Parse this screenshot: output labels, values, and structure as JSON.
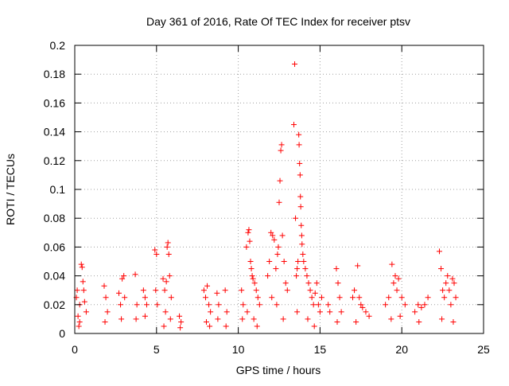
{
  "chart_data": {
    "type": "scatter",
    "title": "Day 361 of 2016, Rate Of TEC Index for receiver ptsv",
    "xlabel": "GPS time / hours",
    "ylabel": "ROTI / TECUs",
    "xlim": [
      0,
      25
    ],
    "ylim": [
      0,
      0.2
    ],
    "xticks": [
      0,
      5,
      10,
      15,
      20,
      25
    ],
    "xtick_labels": [
      "0",
      "5",
      "10",
      "15",
      "20",
      "25"
    ],
    "yticks": [
      0,
      0.02,
      0.04,
      0.06,
      0.08,
      0.1,
      0.12,
      0.14,
      0.16,
      0.18,
      0.2
    ],
    "ytick_labels": [
      "0",
      "0.02",
      "0.04",
      "0.06",
      "0.08",
      "0.1",
      "0.12",
      "0.14",
      "0.16",
      "0.18",
      "0.2"
    ],
    "grid": true,
    "marker": "+",
    "color": "#ff0000",
    "series": [
      {
        "name": "ROTI",
        "points": [
          [
            0.1,
            0.025
          ],
          [
            0.2,
            0.012
          ],
          [
            0.3,
            0.02
          ],
          [
            0.4,
            0.048
          ],
          [
            0.45,
            0.046
          ],
          [
            0.5,
            0.036
          ],
          [
            0.55,
            0.03
          ],
          [
            0.6,
            0.022
          ],
          [
            0.7,
            0.015
          ],
          [
            0.3,
            0.008
          ],
          [
            0.15,
            0.03
          ],
          [
            0.25,
            0.005
          ],
          [
            1.8,
            0.033
          ],
          [
            1.9,
            0.025
          ],
          [
            2.0,
            0.015
          ],
          [
            1.85,
            0.008
          ],
          [
            2.7,
            0.028
          ],
          [
            2.8,
            0.02
          ],
          [
            2.9,
            0.038
          ],
          [
            3.0,
            0.04
          ],
          [
            2.85,
            0.01
          ],
          [
            3.05,
            0.025
          ],
          [
            3.7,
            0.041
          ],
          [
            3.8,
            0.02
          ],
          [
            3.75,
            0.01
          ],
          [
            4.2,
            0.03
          ],
          [
            4.3,
            0.025
          ],
          [
            4.4,
            0.02
          ],
          [
            4.3,
            0.012
          ],
          [
            4.9,
            0.058
          ],
          [
            5.0,
            0.055
          ],
          [
            4.95,
            0.03
          ],
          [
            5.05,
            0.02
          ],
          [
            5.4,
            0.038
          ],
          [
            5.5,
            0.03
          ],
          [
            5.6,
            0.036
          ],
          [
            5.65,
            0.06
          ],
          [
            5.7,
            0.063
          ],
          [
            5.75,
            0.055
          ],
          [
            5.8,
            0.04
          ],
          [
            5.9,
            0.025
          ],
          [
            5.55,
            0.015
          ],
          [
            5.85,
            0.01
          ],
          [
            5.45,
            0.005
          ],
          [
            6.4,
            0.012
          ],
          [
            6.5,
            0.008
          ],
          [
            6.45,
            0.004
          ],
          [
            7.9,
            0.03
          ],
          [
            8.0,
            0.025
          ],
          [
            8.1,
            0.033
          ],
          [
            8.2,
            0.02
          ],
          [
            8.3,
            0.015
          ],
          [
            8.05,
            0.008
          ],
          [
            8.25,
            0.005
          ],
          [
            8.7,
            0.028
          ],
          [
            8.8,
            0.02
          ],
          [
            8.75,
            0.01
          ],
          [
            9.2,
            0.03
          ],
          [
            9.3,
            0.015
          ],
          [
            9.25,
            0.005
          ],
          [
            10.2,
            0.03
          ],
          [
            10.3,
            0.02
          ],
          [
            10.25,
            0.01
          ],
          [
            10.5,
            0.06
          ],
          [
            10.6,
            0.07
          ],
          [
            10.65,
            0.072
          ],
          [
            10.7,
            0.064
          ],
          [
            10.75,
            0.05
          ],
          [
            10.8,
            0.045
          ],
          [
            10.85,
            0.04
          ],
          [
            10.9,
            0.038
          ],
          [
            11.0,
            0.035
          ],
          [
            11.1,
            0.03
          ],
          [
            11.2,
            0.025
          ],
          [
            11.3,
            0.02
          ],
          [
            10.55,
            0.015
          ],
          [
            10.95,
            0.01
          ],
          [
            11.15,
            0.005
          ],
          [
            11.8,
            0.04
          ],
          [
            11.9,
            0.05
          ],
          [
            12.0,
            0.07
          ],
          [
            12.1,
            0.068
          ],
          [
            12.2,
            0.065
          ],
          [
            12.3,
            0.045
          ],
          [
            12.4,
            0.055
          ],
          [
            12.45,
            0.06
          ],
          [
            12.5,
            0.091
          ],
          [
            12.55,
            0.106
          ],
          [
            12.6,
            0.127
          ],
          [
            12.65,
            0.131
          ],
          [
            12.7,
            0.068
          ],
          [
            12.8,
            0.05
          ],
          [
            12.9,
            0.035
          ],
          [
            13.0,
            0.03
          ],
          [
            12.35,
            0.02
          ],
          [
            12.75,
            0.01
          ],
          [
            12.05,
            0.025
          ],
          [
            13.4,
            0.145
          ],
          [
            13.45,
            0.187
          ],
          [
            13.5,
            0.08
          ],
          [
            13.55,
            0.04
          ],
          [
            13.6,
            0.045
          ],
          [
            13.65,
            0.05
          ],
          [
            13.7,
            0.138
          ],
          [
            13.72,
            0.131
          ],
          [
            13.75,
            0.118
          ],
          [
            13.78,
            0.11
          ],
          [
            13.8,
            0.095
          ],
          [
            13.82,
            0.088
          ],
          [
            13.85,
            0.075
          ],
          [
            13.88,
            0.068
          ],
          [
            13.9,
            0.062
          ],
          [
            13.95,
            0.055
          ],
          [
            14.0,
            0.05
          ],
          [
            14.1,
            0.045
          ],
          [
            14.2,
            0.04
          ],
          [
            14.3,
            0.035
          ],
          [
            14.4,
            0.03
          ],
          [
            14.5,
            0.025
          ],
          [
            14.6,
            0.02
          ],
          [
            14.7,
            0.028
          ],
          [
            14.8,
            0.035
          ],
          [
            14.9,
            0.02
          ],
          [
            15.0,
            0.015
          ],
          [
            15.1,
            0.025
          ],
          [
            14.25,
            0.01
          ],
          [
            14.65,
            0.005
          ],
          [
            13.6,
            0.015
          ],
          [
            15.5,
            0.02
          ],
          [
            15.6,
            0.015
          ],
          [
            16.0,
            0.045
          ],
          [
            16.1,
            0.035
          ],
          [
            16.2,
            0.025
          ],
          [
            16.3,
            0.015
          ],
          [
            16.05,
            0.008
          ],
          [
            17.0,
            0.025
          ],
          [
            17.1,
            0.03
          ],
          [
            17.3,
            0.047
          ],
          [
            17.4,
            0.025
          ],
          [
            17.5,
            0.02
          ],
          [
            17.6,
            0.018
          ],
          [
            17.8,
            0.015
          ],
          [
            18.0,
            0.012
          ],
          [
            17.2,
            0.008
          ],
          [
            19.0,
            0.02
          ],
          [
            19.2,
            0.025
          ],
          [
            19.4,
            0.048
          ],
          [
            19.5,
            0.035
          ],
          [
            19.6,
            0.04
          ],
          [
            19.7,
            0.03
          ],
          [
            19.8,
            0.038
          ],
          [
            20.0,
            0.025
          ],
          [
            20.2,
            0.02
          ],
          [
            19.35,
            0.01
          ],
          [
            19.9,
            0.012
          ],
          [
            20.8,
            0.015
          ],
          [
            21.0,
            0.02
          ],
          [
            21.2,
            0.018
          ],
          [
            21.4,
            0.02
          ],
          [
            21.6,
            0.025
          ],
          [
            21.05,
            0.008
          ],
          [
            22.3,
            0.057
          ],
          [
            22.4,
            0.045
          ],
          [
            22.5,
            0.03
          ],
          [
            22.6,
            0.025
          ],
          [
            22.7,
            0.035
          ],
          [
            22.8,
            0.04
          ],
          [
            22.9,
            0.03
          ],
          [
            23.0,
            0.02
          ],
          [
            23.1,
            0.038
          ],
          [
            23.2,
            0.035
          ],
          [
            23.3,
            0.025
          ],
          [
            22.45,
            0.01
          ],
          [
            23.15,
            0.008
          ]
        ]
      }
    ]
  }
}
